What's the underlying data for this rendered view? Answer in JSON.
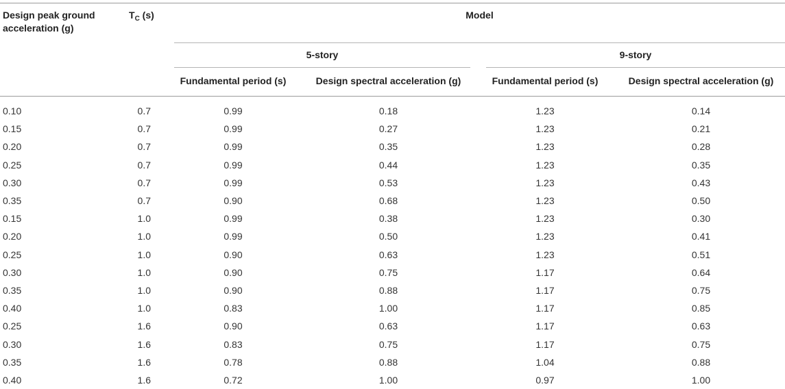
{
  "header": {
    "col_pga_line1": "Design peak ground",
    "col_pga_line2": "acceleration (g)",
    "col_tc_main": "T",
    "col_tc_sub": "C",
    "col_tc_unit": " (s)",
    "model_label": "Model",
    "group_5": "5-story",
    "group_9": "9-story",
    "sub_period_5": "Fundamental period (s)",
    "sub_accel_5": "Design spectral acceleration (g)",
    "sub_period_9": "Fundamental period (s)",
    "sub_accel_9": "Design spectral acceleration (g)"
  },
  "rows": [
    [
      "0.10",
      "0.7",
      "0.99",
      "0.18",
      "1.23",
      "0.14"
    ],
    [
      "0.15",
      "0.7",
      "0.99",
      "0.27",
      "1.23",
      "0.21"
    ],
    [
      "0.20",
      "0.7",
      "0.99",
      "0.35",
      "1.23",
      "0.28"
    ],
    [
      "0.25",
      "0.7",
      "0.99",
      "0.44",
      "1.23",
      "0.35"
    ],
    [
      "0.30",
      "0.7",
      "0.99",
      "0.53",
      "1.23",
      "0.43"
    ],
    [
      "0.35",
      "0.7",
      "0.90",
      "0.68",
      "1.23",
      "0.50"
    ],
    [
      "0.15",
      "1.0",
      "0.99",
      "0.38",
      "1.23",
      "0.30"
    ],
    [
      "0.20",
      "1.0",
      "0.99",
      "0.50",
      "1.23",
      "0.41"
    ],
    [
      "0.25",
      "1.0",
      "0.90",
      "0.63",
      "1.23",
      "0.51"
    ],
    [
      "0.30",
      "1.0",
      "0.90",
      "0.75",
      "1.17",
      "0.64"
    ],
    [
      "0.35",
      "1.0",
      "0.90",
      "0.88",
      "1.17",
      "0.75"
    ],
    [
      "0.40",
      "1.0",
      "0.83",
      "1.00",
      "1.17",
      "0.85"
    ],
    [
      "0.25",
      "1.6",
      "0.90",
      "0.63",
      "1.17",
      "0.63"
    ],
    [
      "0.30",
      "1.6",
      "0.83",
      "0.75",
      "1.17",
      "0.75"
    ],
    [
      "0.35",
      "1.6",
      "0.78",
      "0.88",
      "1.04",
      "0.88"
    ],
    [
      "0.40",
      "1.6",
      "0.72",
      "1.00",
      "0.97",
      "1.00"
    ]
  ]
}
